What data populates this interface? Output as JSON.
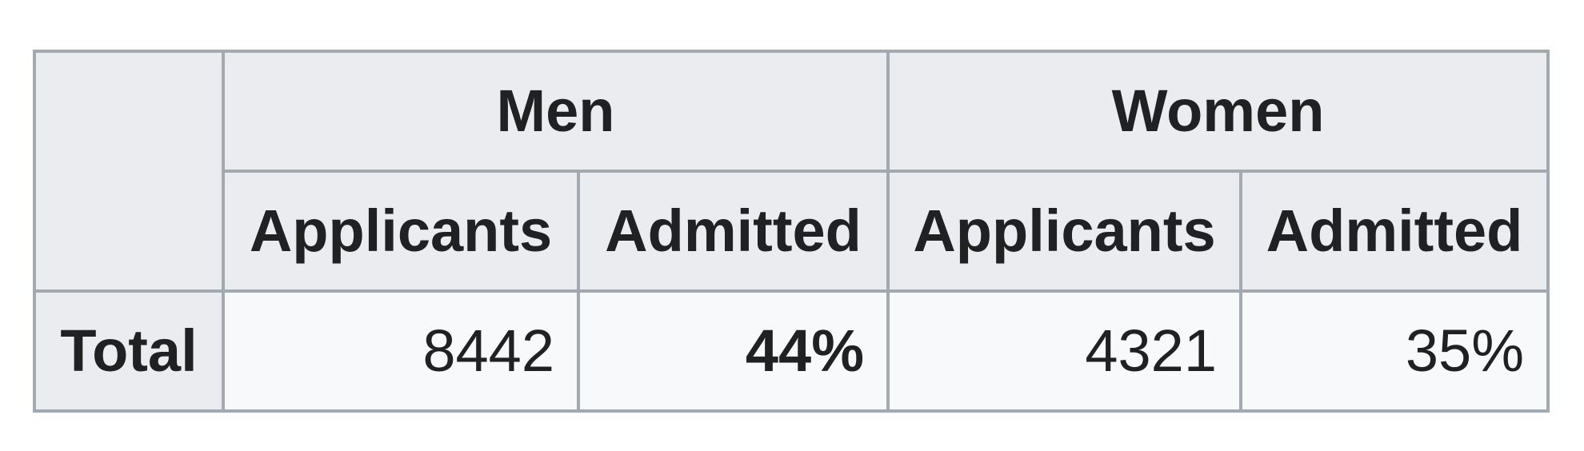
{
  "table": {
    "groups": {
      "men": "Men",
      "women": "Women"
    },
    "subheaders": {
      "men_applicants": "Applicants",
      "men_admitted": "Admitted",
      "women_applicants": "Applicants",
      "women_admitted": "Admitted"
    },
    "rows": [
      {
        "label": "Total",
        "men_applicants": "8442",
        "men_admitted": "44%",
        "women_applicants": "4321",
        "women_admitted": "35%"
      }
    ]
  },
  "colors": {
    "border": "#a2a9b1",
    "header_bg": "#eaecf0",
    "cell_bg": "#f8f9fa",
    "text": "#202122"
  }
}
